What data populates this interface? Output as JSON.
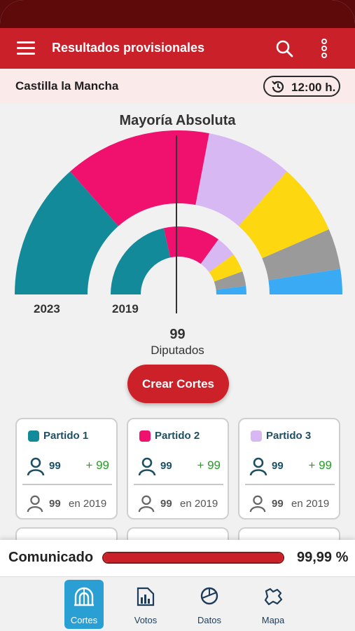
{
  "app": {
    "title": "Resultados provisionales",
    "menu_icon": "menu-icon",
    "search_icon": "search-icon",
    "more_icon": "more-vert-icon"
  },
  "region": {
    "name": "Castilla la Mancha",
    "time": "12:00 h.",
    "time_icon": "clock-history-icon"
  },
  "chart_data": {
    "type": "pie",
    "title": "Mayoría Absoluta",
    "rings": [
      {
        "label": "2023",
        "slices": [
          {
            "color": "#138a99",
            "value": 27
          },
          {
            "color": "#f0116e",
            "value": 29
          },
          {
            "color": "#d8b8f2",
            "value": 17
          },
          {
            "color": "#fdd70f",
            "value": 14
          },
          {
            "color": "#9a9a9a",
            "value": 8
          },
          {
            "color": "#3aaaf4",
            "value": 5
          }
        ]
      },
      {
        "label": "2019",
        "slices": [
          {
            "color": "#138a99",
            "value": 43
          },
          {
            "color": "#f0116e",
            "value": 27
          },
          {
            "color": "#d8b8f2",
            "value": 10
          },
          {
            "color": "#fdd70f",
            "value": 9
          },
          {
            "color": "#9a9a9a",
            "value": 7
          },
          {
            "color": "#3aaaf4",
            "value": 4
          }
        ]
      }
    ],
    "majority_seats": "99",
    "majority_unit": "Diputados"
  },
  "cta": {
    "label": "Crear Cortes"
  },
  "parties": [
    {
      "name": "Partido 1",
      "color": "#138a99",
      "seats": "99",
      "diff": "+ 99",
      "prev": "99",
      "prev_label": "en 2019"
    },
    {
      "name": "Partido 2",
      "color": "#f0116e",
      "seats": "99",
      "diff": "+ 99",
      "prev": "99",
      "prev_label": "en 2019"
    },
    {
      "name": "Partido 3",
      "color": "#d8b8f2",
      "seats": "99",
      "diff": "+ 99",
      "prev": "99",
      "prev_label": "en 2019"
    }
  ],
  "progress": {
    "label": "Comunicado",
    "value_text": "99,99 %",
    "value": 0.9999
  },
  "nav": [
    {
      "label": "Cortes",
      "icon": "parliament-icon",
      "active": true
    },
    {
      "label": "Votos",
      "icon": "bar-chart-icon",
      "active": false
    },
    {
      "label": "Datos",
      "icon": "pie-chart-icon",
      "active": false
    },
    {
      "label": "Mapa",
      "icon": "map-icon",
      "active": false
    }
  ],
  "colors": {
    "primary": "#c9202a",
    "accent": "#2a9fd4",
    "positive": "#2b9a2b"
  }
}
